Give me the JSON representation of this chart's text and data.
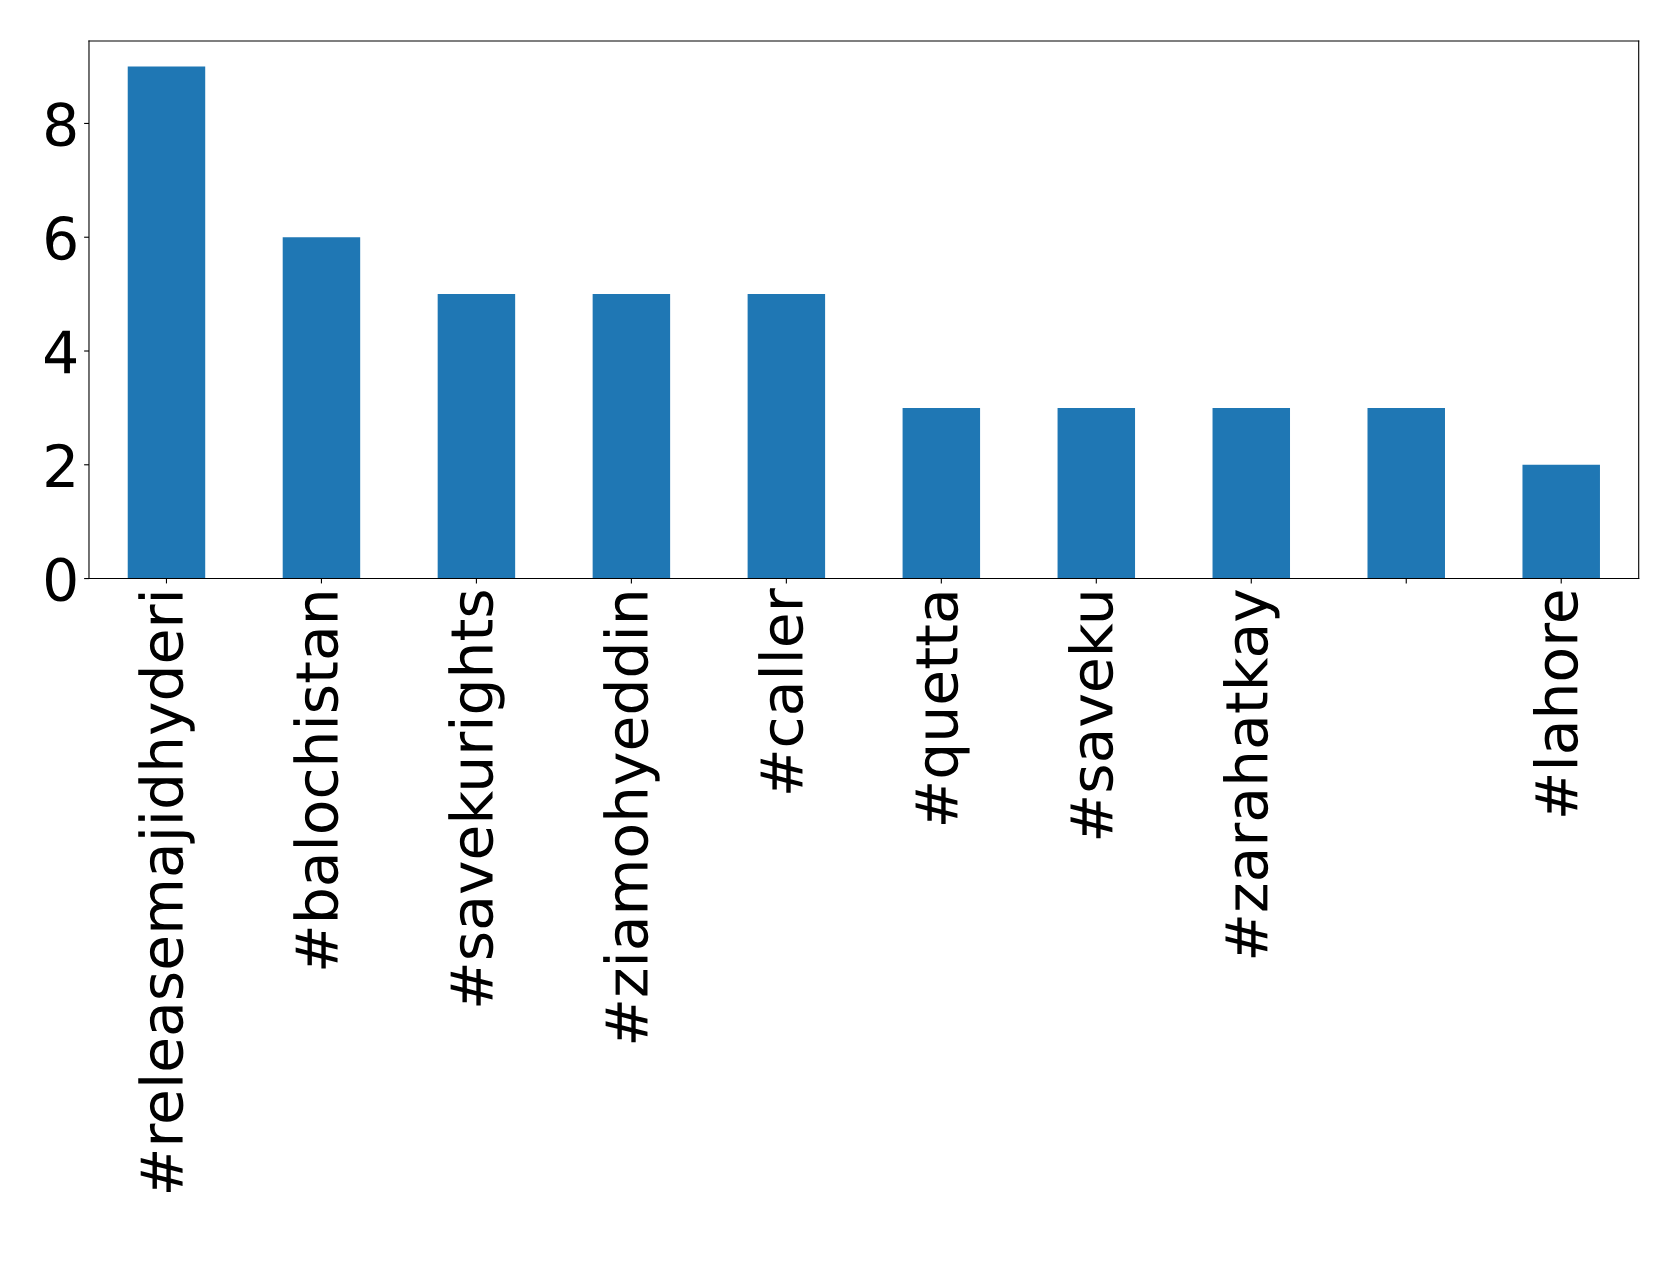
{
  "chart_data": {
    "type": "bar",
    "categories": [
      "#releasemajidhyderi",
      "#balochistan",
      "#savekurights",
      "#ziamohyeddin",
      "#caller",
      "#quetta",
      "#saveku",
      "#zarahatkay",
      null,
      "#lahore"
    ],
    "values": [
      9,
      6,
      5,
      5,
      5,
      3,
      3,
      3,
      3,
      2
    ],
    "color": "#1f77b4",
    "ylim": [
      0,
      9.45
    ],
    "yticks": [
      0,
      2,
      4,
      6,
      8
    ],
    "grid": false,
    "legend": false
  }
}
